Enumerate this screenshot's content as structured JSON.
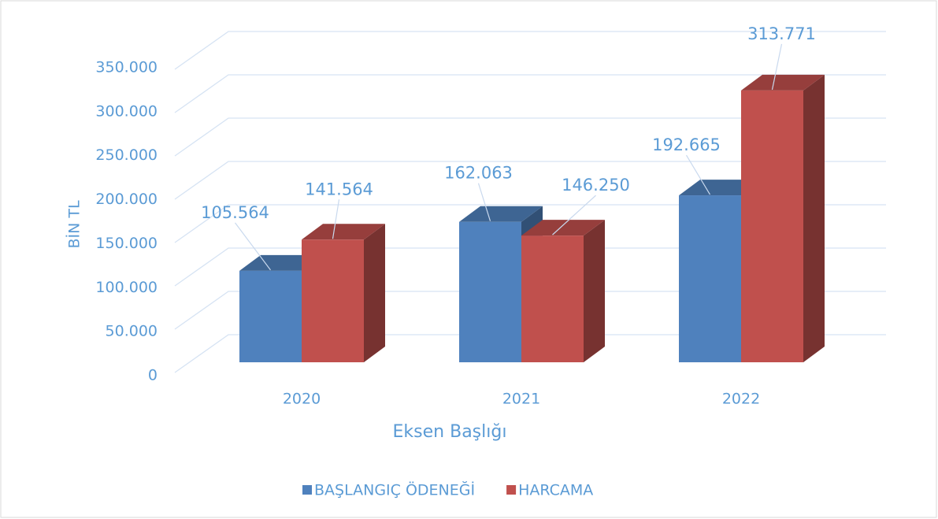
{
  "chart_data": {
    "type": "bar3d",
    "categories": [
      "2020",
      "2021",
      "2022"
    ],
    "series": [
      {
        "name": "BAŞLANGIÇ ÖDENEĞİ",
        "color": "#4f81bd",
        "values": [
          105564,
          162063,
          192665
        ],
        "value_labels": [
          "105.564",
          "162.063",
          "192.665"
        ]
      },
      {
        "name": "HARCAMA",
        "color": "#c0504d",
        "values": [
          141564,
          146250,
          313771
        ],
        "value_labels": [
          "141.564",
          "146.250",
          "313.771"
        ]
      }
    ],
    "ylabel": "BİN TL",
    "xlabel": "Eksen Başlığı",
    "ylim": [
      0,
      350000
    ],
    "yticks": [
      0,
      {
        "value": 50000,
        "label": "50.000"
      },
      {
        "value": 100000,
        "label": "100.000"
      },
      {
        "value": 150000,
        "label": "150.000"
      },
      {
        "value": 200000,
        "label": "200.000"
      },
      {
        "value": 250000,
        "label": "250.000"
      },
      {
        "value": 300000,
        "label": "300.000"
      },
      {
        "value": 350000,
        "label": "350.000"
      }
    ],
    "grid": true,
    "legend": "bottom"
  }
}
